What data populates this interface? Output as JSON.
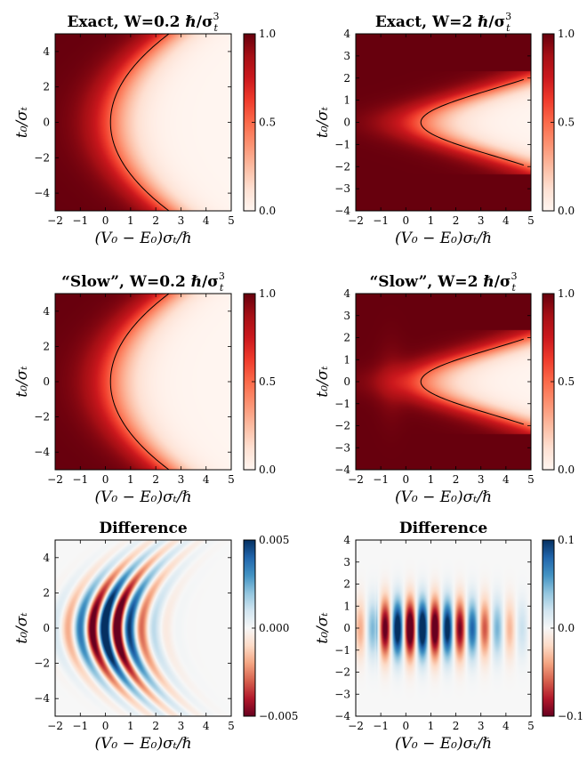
{
  "chart_data": [
    {
      "id": "exact-w02",
      "type": "heatmap",
      "title": "Exact, W=0.2 ℏ/σ",
      "title_sub": "t",
      "title_sup": "3",
      "xlabel": "(V₀ − E₀)σₜ/ℏ",
      "ylabel": "t₀/σₜ",
      "xlim": [
        -2,
        5
      ],
      "ylim": [
        -5,
        5
      ],
      "xticks": [
        "−2",
        "−1",
        "0",
        "1",
        "2",
        "3",
        "4",
        "5"
      ],
      "yticks": [
        "−4",
        "−2",
        "0",
        "2",
        "4"
      ],
      "colorbar": {
        "ticks": [
          "0.0",
          "0.5",
          "1.0"
        ],
        "vmin": 0,
        "vmax": 1,
        "colormap": "Reds"
      },
      "contour": {
        "level": 0.5,
        "vertex_x0": 0.2,
        "curvature": 0.093
      },
      "field": {
        "kind": "transmission",
        "x_edge": 0.2,
        "curvature": 0.093,
        "width": 0.55
      }
    },
    {
      "id": "exact-w2",
      "type": "heatmap",
      "title": "Exact, W=2 ℏ/σ",
      "title_sub": "t",
      "title_sup": "3",
      "xlabel": "(V₀ − E₀)σₜ/ℏ",
      "ylabel": "t₀/σₜ",
      "xlim": [
        -2,
        5
      ],
      "ylim": [
        -4,
        4
      ],
      "xticks": [
        "−2",
        "−1",
        "0",
        "1",
        "2",
        "3",
        "4",
        "5"
      ],
      "yticks": [
        "−4",
        "−3",
        "−2",
        "−1",
        "0",
        "1",
        "2",
        "3",
        "4"
      ],
      "colorbar": {
        "ticks": [
          "0.0",
          "0.5",
          "1.0"
        ],
        "vmin": 0,
        "vmax": 1,
        "colormap": "Reds"
      },
      "contour": {
        "level": 0.5,
        "vertex_x0": 0.6,
        "curvature": 0.55,
        "saturation": 2.3
      },
      "field": {
        "kind": "transmission_sat",
        "x_edge": 0.6,
        "curvature": 0.55,
        "saturation": 2.3,
        "width": 0.8
      }
    },
    {
      "id": "slow-w02",
      "type": "heatmap",
      "title": "“Slow”, W=0.2 ℏ/σ",
      "title_sub": "t",
      "title_sup": "3",
      "xlabel": "(V₀ − E₀)σₜ/ℏ",
      "ylabel": "t₀/σₜ",
      "xlim": [
        -2,
        5
      ],
      "ylim": [
        -5,
        5
      ],
      "xticks": [
        "−2",
        "−1",
        "0",
        "1",
        "2",
        "3",
        "4",
        "5"
      ],
      "yticks": [
        "−4",
        "−2",
        "0",
        "2",
        "4"
      ],
      "colorbar": {
        "ticks": [
          "0.0",
          "0.5",
          "1.0"
        ],
        "vmin": 0,
        "vmax": 1,
        "colormap": "Reds"
      },
      "contour": {
        "level": 0.5,
        "vertex_x0": 0.2,
        "curvature": 0.093
      },
      "field": {
        "kind": "transmission",
        "x_edge": 0.2,
        "curvature": 0.093,
        "width": 0.55
      }
    },
    {
      "id": "slow-w2",
      "type": "heatmap",
      "title": "“Slow”, W=2 ℏ/σ",
      "title_sub": "t",
      "title_sup": "3",
      "xlabel": "(V₀ − E₀)σₜ/ℏ",
      "ylabel": "t₀/σₜ",
      "xlim": [
        -2,
        5
      ],
      "ylim": [
        -4,
        4
      ],
      "xticks": [
        "−2",
        "−1",
        "0",
        "1",
        "2",
        "3",
        "4",
        "5"
      ],
      "yticks": [
        "−4",
        "−3",
        "−2",
        "−1",
        "0",
        "1",
        "2",
        "3",
        "4"
      ],
      "colorbar": {
        "ticks": [
          "0.0",
          "0.5",
          "1.0"
        ],
        "vmin": 0,
        "vmax": 1,
        "colormap": "Reds"
      },
      "contour": {
        "level": 0.5,
        "vertex_x0": 0.6,
        "curvature": 0.55,
        "saturation": 2.3
      },
      "field": {
        "kind": "transmission_sat",
        "x_edge": 0.6,
        "curvature": 0.55,
        "saturation": 2.3,
        "width": 0.8,
        "ripple": 0.06
      }
    },
    {
      "id": "diff-w02",
      "type": "heatmap",
      "title": "Difference",
      "xlabel": "(V₀ − E₀)σₜ/ℏ",
      "ylabel": "t₀/σₜ",
      "xlim": [
        -2,
        5
      ],
      "ylim": [
        -5,
        5
      ],
      "xticks": [
        "−2",
        "−1",
        "0",
        "1",
        "2",
        "3",
        "4",
        "5"
      ],
      "yticks": [
        "−4",
        "−2",
        "0",
        "2",
        "4"
      ],
      "colorbar": {
        "ticks": [
          "−0.005",
          "0.000",
          "0.005"
        ],
        "vmin": -0.005,
        "vmax": 0.005,
        "colormap": "RdBu"
      },
      "field": {
        "kind": "arcs",
        "vmax": 0.005,
        "x_edge": 0.2,
        "curvature": 0.093,
        "period": 1.0,
        "phase": 0.0,
        "decay": 1.0,
        "t_scale": 2.3
      }
    },
    {
      "id": "diff-w2",
      "type": "heatmap",
      "title": "Difference",
      "xlabel": "(V₀ − E₀)σₜ/ℏ",
      "ylabel": "t₀/σₜ",
      "xlim": [
        -2,
        5
      ],
      "ylim": [
        -4,
        4
      ],
      "xticks": [
        "−2",
        "−1",
        "0",
        "1",
        "2",
        "3",
        "4",
        "5"
      ],
      "yticks": [
        "−4",
        "−3",
        "−2",
        "−1",
        "0",
        "1",
        "2",
        "3",
        "4"
      ],
      "colorbar": {
        "ticks": [
          "−0.1",
          "0.0",
          "0.1"
        ],
        "vmin": -0.1,
        "vmax": 0.1,
        "colormap": "RdBu"
      },
      "field": {
        "kind": "stripes",
        "vmax": 0.1,
        "period": 1.0,
        "phase": -0.1,
        "decay": 1.2,
        "t_scale": 0.9
      }
    }
  ]
}
